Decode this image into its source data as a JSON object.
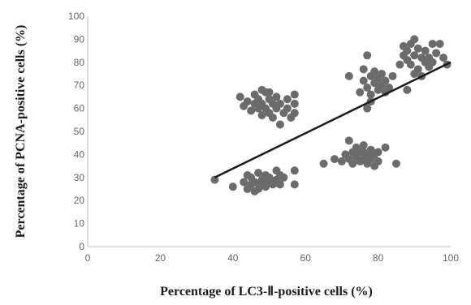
{
  "chart_data": {
    "type": "scatter",
    "xlabel": "Percentage of LC3-Ⅱ-positive cells (%)",
    "ylabel": "Percentage of PCNA-positive cells (%)",
    "xlim": [
      0,
      100
    ],
    "ylim": [
      0,
      100
    ],
    "x_ticks": [
      "0",
      "20",
      "40",
      "60",
      "80",
      "100"
    ],
    "y_ticks": [
      "0",
      "10",
      "20",
      "30",
      "40",
      "50",
      "60",
      "70",
      "80",
      "90",
      "100"
    ],
    "grid": false,
    "legend": "none",
    "point_color": "#6b6b6b",
    "line_color": "#1a1a1a",
    "trendline": {
      "x": [
        35,
        100
      ],
      "y": [
        30,
        80
      ]
    },
    "points": [
      {
        "x": 35,
        "y": 29
      },
      {
        "x": 40,
        "y": 26
      },
      {
        "x": 43,
        "y": 28
      },
      {
        "x": 44,
        "y": 31
      },
      {
        "x": 45,
        "y": 27
      },
      {
        "x": 45,
        "y": 30
      },
      {
        "x": 46,
        "y": 24
      },
      {
        "x": 46,
        "y": 28
      },
      {
        "x": 47,
        "y": 32
      },
      {
        "x": 47,
        "y": 25
      },
      {
        "x": 48,
        "y": 29
      },
      {
        "x": 48,
        "y": 27
      },
      {
        "x": 49,
        "y": 31
      },
      {
        "x": 49,
        "y": 26
      },
      {
        "x": 50,
        "y": 28
      },
      {
        "x": 50,
        "y": 30
      },
      {
        "x": 51,
        "y": 27
      },
      {
        "x": 52,
        "y": 33
      },
      {
        "x": 52,
        "y": 29
      },
      {
        "x": 53,
        "y": 31
      },
      {
        "x": 53,
        "y": 27
      },
      {
        "x": 54,
        "y": 30
      },
      {
        "x": 57,
        "y": 33
      },
      {
        "x": 57,
        "y": 27
      },
      {
        "x": 44,
        "y": 25
      },
      {
        "x": 42,
        "y": 65
      },
      {
        "x": 43,
        "y": 61
      },
      {
        "x": 44,
        "y": 63
      },
      {
        "x": 45,
        "y": 59
      },
      {
        "x": 46,
        "y": 62
      },
      {
        "x": 46,
        "y": 66
      },
      {
        "x": 47,
        "y": 60
      },
      {
        "x": 47,
        "y": 64
      },
      {
        "x": 48,
        "y": 57
      },
      {
        "x": 48,
        "y": 62
      },
      {
        "x": 49,
        "y": 67
      },
      {
        "x": 49,
        "y": 60
      },
      {
        "x": 50,
        "y": 64
      },
      {
        "x": 50,
        "y": 58
      },
      {
        "x": 51,
        "y": 62
      },
      {
        "x": 51,
        "y": 56
      },
      {
        "x": 52,
        "y": 65
      },
      {
        "x": 52,
        "y": 60
      },
      {
        "x": 53,
        "y": 53
      },
      {
        "x": 53,
        "y": 62
      },
      {
        "x": 54,
        "y": 58
      },
      {
        "x": 55,
        "y": 64
      },
      {
        "x": 55,
        "y": 60
      },
      {
        "x": 56,
        "y": 56
      },
      {
        "x": 57,
        "y": 62
      },
      {
        "x": 57,
        "y": 66
      },
      {
        "x": 57,
        "y": 58
      },
      {
        "x": 48,
        "y": 68
      },
      {
        "x": 50,
        "y": 67
      },
      {
        "x": 65,
        "y": 36
      },
      {
        "x": 68,
        "y": 38
      },
      {
        "x": 70,
        "y": 37
      },
      {
        "x": 71,
        "y": 40
      },
      {
        "x": 72,
        "y": 46
      },
      {
        "x": 72,
        "y": 38
      },
      {
        "x": 73,
        "y": 41
      },
      {
        "x": 73,
        "y": 36
      },
      {
        "x": 74,
        "y": 39
      },
      {
        "x": 74,
        "y": 43
      },
      {
        "x": 75,
        "y": 37
      },
      {
        "x": 75,
        "y": 41
      },
      {
        "x": 76,
        "y": 44
      },
      {
        "x": 76,
        "y": 38
      },
      {
        "x": 77,
        "y": 40
      },
      {
        "x": 77,
        "y": 36
      },
      {
        "x": 78,
        "y": 42
      },
      {
        "x": 78,
        "y": 38
      },
      {
        "x": 79,
        "y": 35
      },
      {
        "x": 79,
        "y": 40
      },
      {
        "x": 80,
        "y": 37
      },
      {
        "x": 80,
        "y": 41
      },
      {
        "x": 82,
        "y": 43
      },
      {
        "x": 85,
        "y": 36
      },
      {
        "x": 76,
        "y": 41
      },
      {
        "x": 72,
        "y": 74
      },
      {
        "x": 75,
        "y": 67
      },
      {
        "x": 76,
        "y": 77
      },
      {
        "x": 76,
        "y": 72
      },
      {
        "x": 77,
        "y": 69
      },
      {
        "x": 77,
        "y": 83
      },
      {
        "x": 77,
        "y": 60
      },
      {
        "x": 78,
        "y": 74
      },
      {
        "x": 78,
        "y": 66
      },
      {
        "x": 79,
        "y": 71
      },
      {
        "x": 79,
        "y": 76
      },
      {
        "x": 80,
        "y": 68
      },
      {
        "x": 80,
        "y": 73
      },
      {
        "x": 81,
        "y": 70
      },
      {
        "x": 81,
        "y": 75
      },
      {
        "x": 82,
        "y": 67
      },
      {
        "x": 82,
        "y": 72
      },
      {
        "x": 83,
        "y": 69
      },
      {
        "x": 84,
        "y": 74
      },
      {
        "x": 78,
        "y": 63
      },
      {
        "x": 86,
        "y": 79
      },
      {
        "x": 87,
        "y": 83
      },
      {
        "x": 87,
        "y": 87
      },
      {
        "x": 88,
        "y": 81
      },
      {
        "x": 88,
        "y": 85
      },
      {
        "x": 89,
        "y": 88
      },
      {
        "x": 89,
        "y": 79
      },
      {
        "x": 90,
        "y": 83
      },
      {
        "x": 90,
        "y": 90
      },
      {
        "x": 91,
        "y": 86
      },
      {
        "x": 91,
        "y": 77
      },
      {
        "x": 92,
        "y": 82
      },
      {
        "x": 92,
        "y": 74
      },
      {
        "x": 93,
        "y": 80
      },
      {
        "x": 93,
        "y": 85
      },
      {
        "x": 94,
        "y": 78
      },
      {
        "x": 94,
        "y": 82
      },
      {
        "x": 95,
        "y": 88
      },
      {
        "x": 95,
        "y": 80
      },
      {
        "x": 96,
        "y": 84
      },
      {
        "x": 97,
        "y": 88
      },
      {
        "x": 98,
        "y": 82
      },
      {
        "x": 88,
        "y": 68
      },
      {
        "x": 90,
        "y": 75
      },
      {
        "x": 99,
        "y": 79
      }
    ]
  }
}
